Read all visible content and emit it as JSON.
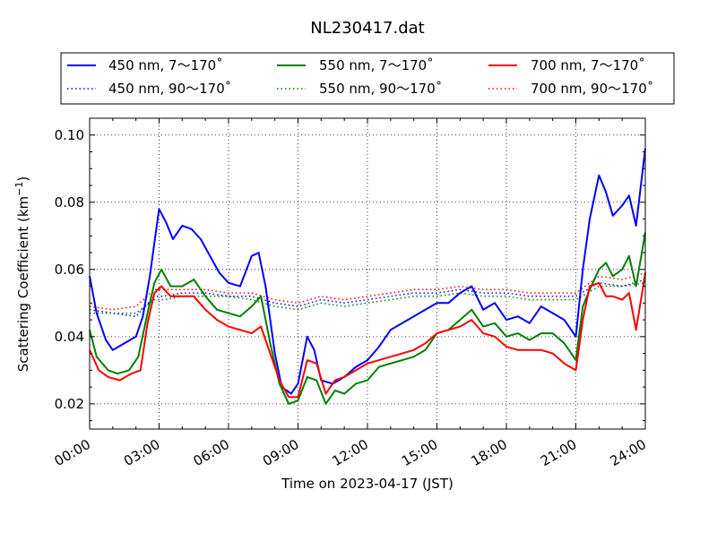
{
  "chart_data": {
    "type": "line",
    "title": "NL230417.dat",
    "xlabel": "Time on 2023-04-17 (JST)",
    "ylabel_prefix": "Scattering Coefficient (km",
    "ylabel_exp": "−1",
    "ylabel_suffix": ")",
    "x_unit": "hour",
    "xlim": [
      0,
      24
    ],
    "ylim": [
      0.0125,
      0.105
    ],
    "x_ticks": [
      0,
      3,
      6,
      9,
      12,
      15,
      18,
      21,
      24
    ],
    "x_tick_labels": [
      "00:00",
      "03:00",
      "06:00",
      "09:00",
      "12:00",
      "15:00",
      "18:00",
      "21:00",
      "24:00"
    ],
    "y_ticks": [
      0.02,
      0.04,
      0.06,
      0.08,
      0.1
    ],
    "y_tick_labels": [
      "0.02",
      "0.04",
      "0.06",
      "0.08",
      "0.10"
    ],
    "grid": true,
    "legend_position": "top, above plot",
    "series": [
      {
        "name": "450 nm, 7～170˚",
        "color": "#0000ff",
        "style": "solid",
        "points": [
          [
            0,
            0.058
          ],
          [
            0.3,
            0.047
          ],
          [
            0.7,
            0.039
          ],
          [
            1.0,
            0.036
          ],
          [
            1.5,
            0.038
          ],
          [
            2.0,
            0.04
          ],
          [
            2.3,
            0.046
          ],
          [
            2.6,
            0.058
          ],
          [
            2.8,
            0.068
          ],
          [
            3.0,
            0.078
          ],
          [
            3.3,
            0.074
          ],
          [
            3.6,
            0.069
          ],
          [
            4.0,
            0.073
          ],
          [
            4.4,
            0.072
          ],
          [
            4.8,
            0.069
          ],
          [
            5.2,
            0.064
          ],
          [
            5.6,
            0.059
          ],
          [
            6.0,
            0.056
          ],
          [
            6.5,
            0.055
          ],
          [
            7.0,
            0.064
          ],
          [
            7.3,
            0.065
          ],
          [
            7.6,
            0.055
          ],
          [
            8.0,
            0.035
          ],
          [
            8.3,
            0.025
          ],
          [
            8.7,
            0.023
          ],
          [
            9.0,
            0.026
          ],
          [
            9.4,
            0.04
          ],
          [
            9.7,
            0.036
          ],
          [
            10.0,
            0.027
          ],
          [
            10.5,
            0.026
          ],
          [
            11.0,
            0.028
          ],
          [
            11.5,
            0.031
          ],
          [
            12.0,
            0.033
          ],
          [
            12.5,
            0.037
          ],
          [
            13.0,
            0.042
          ],
          [
            13.5,
            0.044
          ],
          [
            14.0,
            0.046
          ],
          [
            14.5,
            0.048
          ],
          [
            15.0,
            0.05
          ],
          [
            15.5,
            0.05
          ],
          [
            16.0,
            0.053
          ],
          [
            16.5,
            0.055
          ],
          [
            17.0,
            0.048
          ],
          [
            17.5,
            0.05
          ],
          [
            18.0,
            0.045
          ],
          [
            18.5,
            0.046
          ],
          [
            19.0,
            0.044
          ],
          [
            19.5,
            0.049
          ],
          [
            20.0,
            0.047
          ],
          [
            20.5,
            0.045
          ],
          [
            21.0,
            0.04
          ],
          [
            21.3,
            0.06
          ],
          [
            21.6,
            0.075
          ],
          [
            22.0,
            0.088
          ],
          [
            22.3,
            0.083
          ],
          [
            22.6,
            0.076
          ],
          [
            23.0,
            0.079
          ],
          [
            23.3,
            0.082
          ],
          [
            23.6,
            0.073
          ],
          [
            24.0,
            0.096
          ]
        ]
      },
      {
        "name": "450 nm, 90～170˚",
        "color": "#0000ff",
        "style": "dotted",
        "points": [
          [
            0,
            0.048
          ],
          [
            1.0,
            0.047
          ],
          [
            2.0,
            0.046
          ],
          [
            2.8,
            0.052
          ],
          [
            3.2,
            0.052
          ],
          [
            4.0,
            0.053
          ],
          [
            5.0,
            0.053
          ],
          [
            6.0,
            0.052
          ],
          [
            7.0,
            0.052
          ],
          [
            8.0,
            0.05
          ],
          [
            9.0,
            0.049
          ],
          [
            10.0,
            0.051
          ],
          [
            11.0,
            0.05
          ],
          [
            12.0,
            0.051
          ],
          [
            13.0,
            0.052
          ],
          [
            14.0,
            0.053
          ],
          [
            15.0,
            0.053
          ],
          [
            16.0,
            0.054
          ],
          [
            17.0,
            0.053
          ],
          [
            18.0,
            0.053
          ],
          [
            19.0,
            0.052
          ],
          [
            20.0,
            0.052
          ],
          [
            21.0,
            0.052
          ],
          [
            22.0,
            0.056
          ],
          [
            23.0,
            0.055
          ],
          [
            24.0,
            0.057
          ]
        ]
      },
      {
        "name": "550 nm, 7～170˚",
        "color": "#008000",
        "style": "solid",
        "points": [
          [
            0,
            0.042
          ],
          [
            0.3,
            0.034
          ],
          [
            0.8,
            0.03
          ],
          [
            1.2,
            0.029
          ],
          [
            1.7,
            0.03
          ],
          [
            2.1,
            0.034
          ],
          [
            2.5,
            0.047
          ],
          [
            2.8,
            0.056
          ],
          [
            3.1,
            0.06
          ],
          [
            3.5,
            0.055
          ],
          [
            4.0,
            0.055
          ],
          [
            4.5,
            0.057
          ],
          [
            5.0,
            0.052
          ],
          [
            5.5,
            0.048
          ],
          [
            6.0,
            0.047
          ],
          [
            6.5,
            0.046
          ],
          [
            7.0,
            0.049
          ],
          [
            7.4,
            0.052
          ],
          [
            7.8,
            0.038
          ],
          [
            8.2,
            0.026
          ],
          [
            8.6,
            0.02
          ],
          [
            9.0,
            0.021
          ],
          [
            9.4,
            0.028
          ],
          [
            9.8,
            0.027
          ],
          [
            10.2,
            0.02
          ],
          [
            10.6,
            0.024
          ],
          [
            11.0,
            0.023
          ],
          [
            11.5,
            0.026
          ],
          [
            12.0,
            0.027
          ],
          [
            12.5,
            0.031
          ],
          [
            13.0,
            0.032
          ],
          [
            13.5,
            0.033
          ],
          [
            14.0,
            0.034
          ],
          [
            14.5,
            0.036
          ],
          [
            15.0,
            0.041
          ],
          [
            15.5,
            0.042
          ],
          [
            16.0,
            0.045
          ],
          [
            16.5,
            0.048
          ],
          [
            17.0,
            0.043
          ],
          [
            17.5,
            0.044
          ],
          [
            18.0,
            0.04
          ],
          [
            18.5,
            0.041
          ],
          [
            19.0,
            0.039
          ],
          [
            19.5,
            0.041
          ],
          [
            20.0,
            0.041
          ],
          [
            20.5,
            0.038
          ],
          [
            21.0,
            0.033
          ],
          [
            21.3,
            0.049
          ],
          [
            21.6,
            0.054
          ],
          [
            22.0,
            0.06
          ],
          [
            22.3,
            0.062
          ],
          [
            22.6,
            0.058
          ],
          [
            23.0,
            0.06
          ],
          [
            23.3,
            0.064
          ],
          [
            23.6,
            0.055
          ],
          [
            24.0,
            0.071
          ]
        ]
      },
      {
        "name": "550 nm, 90～170˚",
        "color": "#008000",
        "style": "dotted",
        "points": [
          [
            0,
            0.047
          ],
          [
            1.0,
            0.047
          ],
          [
            2.0,
            0.047
          ],
          [
            2.8,
            0.051
          ],
          [
            3.2,
            0.051
          ],
          [
            4.0,
            0.052
          ],
          [
            5.0,
            0.052
          ],
          [
            6.0,
            0.052
          ],
          [
            7.0,
            0.051
          ],
          [
            8.0,
            0.049
          ],
          [
            9.0,
            0.048
          ],
          [
            10.0,
            0.05
          ],
          [
            11.0,
            0.049
          ],
          [
            12.0,
            0.05
          ],
          [
            13.0,
            0.051
          ],
          [
            14.0,
            0.052
          ],
          [
            15.0,
            0.052
          ],
          [
            16.0,
            0.053
          ],
          [
            17.0,
            0.052
          ],
          [
            18.0,
            0.052
          ],
          [
            19.0,
            0.051
          ],
          [
            20.0,
            0.051
          ],
          [
            21.0,
            0.051
          ],
          [
            22.0,
            0.055
          ],
          [
            23.0,
            0.055
          ],
          [
            24.0,
            0.056
          ]
        ]
      },
      {
        "name": "700 nm, 7～170˚",
        "color": "#ff0000",
        "style": "solid",
        "points": [
          [
            0,
            0.036
          ],
          [
            0.4,
            0.03
          ],
          [
            0.8,
            0.028
          ],
          [
            1.3,
            0.027
          ],
          [
            1.8,
            0.029
          ],
          [
            2.2,
            0.03
          ],
          [
            2.5,
            0.044
          ],
          [
            2.8,
            0.053
          ],
          [
            3.1,
            0.055
          ],
          [
            3.5,
            0.052
          ],
          [
            4.0,
            0.052
          ],
          [
            4.5,
            0.052
          ],
          [
            5.0,
            0.048
          ],
          [
            5.5,
            0.045
          ],
          [
            6.0,
            0.043
          ],
          [
            6.5,
            0.042
          ],
          [
            7.0,
            0.041
          ],
          [
            7.4,
            0.043
          ],
          [
            7.8,
            0.035
          ],
          [
            8.2,
            0.027
          ],
          [
            8.6,
            0.022
          ],
          [
            9.0,
            0.022
          ],
          [
            9.4,
            0.033
          ],
          [
            9.8,
            0.032
          ],
          [
            10.2,
            0.023
          ],
          [
            10.6,
            0.027
          ],
          [
            11.0,
            0.028
          ],
          [
            11.5,
            0.03
          ],
          [
            12.0,
            0.032
          ],
          [
            12.5,
            0.033
          ],
          [
            13.0,
            0.034
          ],
          [
            13.5,
            0.035
          ],
          [
            14.0,
            0.036
          ],
          [
            14.5,
            0.038
          ],
          [
            15.0,
            0.041
          ],
          [
            15.5,
            0.042
          ],
          [
            16.0,
            0.043
          ],
          [
            16.5,
            0.045
          ],
          [
            17.0,
            0.041
          ],
          [
            17.5,
            0.04
          ],
          [
            18.0,
            0.037
          ],
          [
            18.5,
            0.036
          ],
          [
            19.0,
            0.036
          ],
          [
            19.5,
            0.036
          ],
          [
            20.0,
            0.035
          ],
          [
            20.5,
            0.032
          ],
          [
            21.0,
            0.03
          ],
          [
            21.3,
            0.045
          ],
          [
            21.6,
            0.055
          ],
          [
            22.0,
            0.056
          ],
          [
            22.3,
            0.052
          ],
          [
            22.6,
            0.052
          ],
          [
            23.0,
            0.051
          ],
          [
            23.3,
            0.053
          ],
          [
            23.6,
            0.042
          ],
          [
            24.0,
            0.059
          ]
        ]
      },
      {
        "name": "700 nm, 90～170˚",
        "color": "#ff0000",
        "style": "dotted",
        "points": [
          [
            0,
            0.049
          ],
          [
            1.0,
            0.048
          ],
          [
            2.0,
            0.049
          ],
          [
            2.8,
            0.054
          ],
          [
            3.2,
            0.054
          ],
          [
            4.0,
            0.054
          ],
          [
            5.0,
            0.054
          ],
          [
            6.0,
            0.053
          ],
          [
            7.0,
            0.053
          ],
          [
            8.0,
            0.051
          ],
          [
            9.0,
            0.05
          ],
          [
            10.0,
            0.052
          ],
          [
            11.0,
            0.051
          ],
          [
            12.0,
            0.052
          ],
          [
            13.0,
            0.053
          ],
          [
            14.0,
            0.054
          ],
          [
            15.0,
            0.054
          ],
          [
            16.0,
            0.055
          ],
          [
            17.0,
            0.054
          ],
          [
            18.0,
            0.054
          ],
          [
            19.0,
            0.053
          ],
          [
            20.0,
            0.053
          ],
          [
            21.0,
            0.053
          ],
          [
            22.0,
            0.058
          ],
          [
            23.0,
            0.057
          ],
          [
            24.0,
            0.059
          ]
        ]
      }
    ]
  }
}
